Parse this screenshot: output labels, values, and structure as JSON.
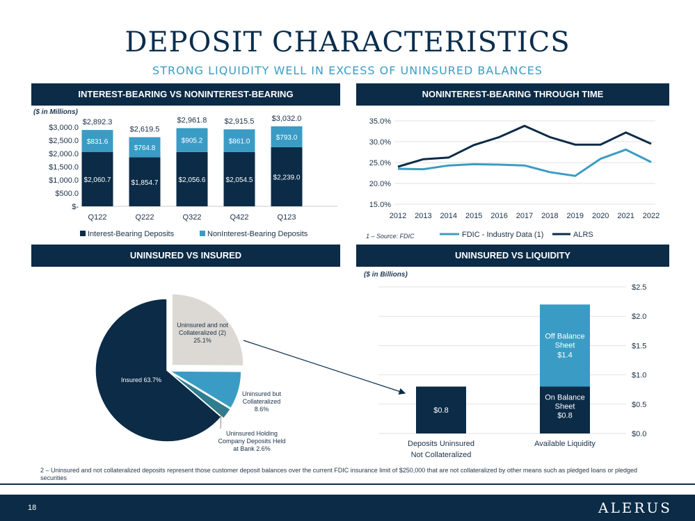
{
  "header": {
    "title": "DEPOSIT CHARACTERISTICS",
    "subtitle": "STRONG LIQUIDITY WELL IN EXCESS OF UNINSURED BALANCES"
  },
  "panels": {
    "top_left_title": "INTEREST-BEARING VS NONINTEREST-BEARING",
    "top_right_title": "NONINTEREST-BEARING THROUGH TIME",
    "bottom_left_title": "UNINSURED VS INSURED",
    "bottom_right_title": "UNINSURED VS LIQUIDITY"
  },
  "notes": {
    "millions": "($ in Millions)",
    "billions": "($ in Billions)",
    "source": "1 – Source: FDIC"
  },
  "footnote": "2 – Uninsured and not collateralized deposits represent those customer deposit balances over the current FDIC insurance limit of $250,000 that are not collateralized by other means such as pledged loans or pledged securities",
  "footer": {
    "page": "18",
    "logo": "ALERUS"
  },
  "colors": {
    "navy": "#0b2b47",
    "light_blue": "#3a9cc4",
    "gray": "#dcd9d4",
    "teal": "#2f7d8e"
  },
  "chart_data": [
    {
      "type": "bar",
      "stacked": true,
      "categories": [
        "Q122",
        "Q222",
        "Q322",
        "Q422",
        "Q123"
      ],
      "series": [
        {
          "name": "Interest-Bearing Deposits",
          "values": [
            2060.7,
            1854.7,
            2056.6,
            2054.5,
            2239.0
          ],
          "labels": [
            "$2,060.7",
            "$1,854.7",
            "$2,056.6",
            "$2,054.5",
            "$2,239.0"
          ]
        },
        {
          "name": "NonInterest-Bearing Deposits",
          "values": [
            831.6,
            764.8,
            905.2,
            861.0,
            793.0
          ],
          "labels": [
            "$831.6",
            "$764.8",
            "$905.2",
            "$861.0",
            "$793.0"
          ]
        }
      ],
      "totals": [
        "$2,892.3",
        "$2,619.5",
        "$2,961.8",
        "$2,915.5",
        "$3,032.0"
      ],
      "yticks": [
        "$3,000.0",
        "$2,500.0",
        "$2,000.0",
        "$1,500.0",
        "$1,000.0",
        "$500.0",
        "$-"
      ],
      "ylim": [
        0,
        3000
      ],
      "legend": "bottom"
    },
    {
      "type": "line",
      "x": [
        "2012",
        "2013",
        "2014",
        "2015",
        "2016",
        "2017",
        "2018",
        "2019",
        "2020",
        "2021",
        "2022"
      ],
      "series": [
        {
          "name": "FDIC - Industry Data (1)",
          "values": [
            23.5,
            23.4,
            24.3,
            24.6,
            24.5,
            24.3,
            22.7,
            21.8,
            25.9,
            28.1,
            25.1
          ]
        },
        {
          "name": "ALRS",
          "values": [
            24.0,
            25.8,
            26.2,
            29.2,
            31.1,
            33.8,
            31.1,
            29.3,
            29.3,
            32.2,
            29.5
          ]
        }
      ],
      "yticks": [
        "35.0%",
        "30.0%",
        "25.0%",
        "20.0%",
        "15.0%"
      ],
      "ylim": [
        15,
        35
      ],
      "grid": true,
      "legend": "bottom"
    },
    {
      "type": "pie",
      "slices": [
        {
          "label": "Uninsured and not Collateralized (2)",
          "pct_text": "25.1%",
          "value": 25.1
        },
        {
          "label": "Uninsured but Collateralized",
          "pct_text": "8.6%",
          "value": 8.6
        },
        {
          "label": "Uninsured Holding Company Deposits Held at Bank",
          "pct_text": "2.6%",
          "value": 2.6
        },
        {
          "label": "Insured",
          "pct_text": "63.7%",
          "value": 63.7
        }
      ]
    },
    {
      "type": "bar",
      "stacked": true,
      "categories": [
        "Deposits Uninsured Not Collateralized",
        "Available Liquidity"
      ],
      "bars": [
        {
          "segments": [
            {
              "value": 0.8,
              "label": "$0.8"
            }
          ]
        },
        {
          "segments": [
            {
              "value": 0.8,
              "label": "On Balance Sheet",
              "value_label": "$0.8"
            },
            {
              "value": 1.4,
              "label": "Off Balance Sheet",
              "value_label": "$1.4"
            }
          ]
        }
      ],
      "yticks": [
        "$2.5",
        "$2.0",
        "$1.5",
        "$1.0",
        "$0.5",
        "$0.0"
      ],
      "ylim": [
        0,
        2.5
      ],
      "grid": true
    }
  ]
}
